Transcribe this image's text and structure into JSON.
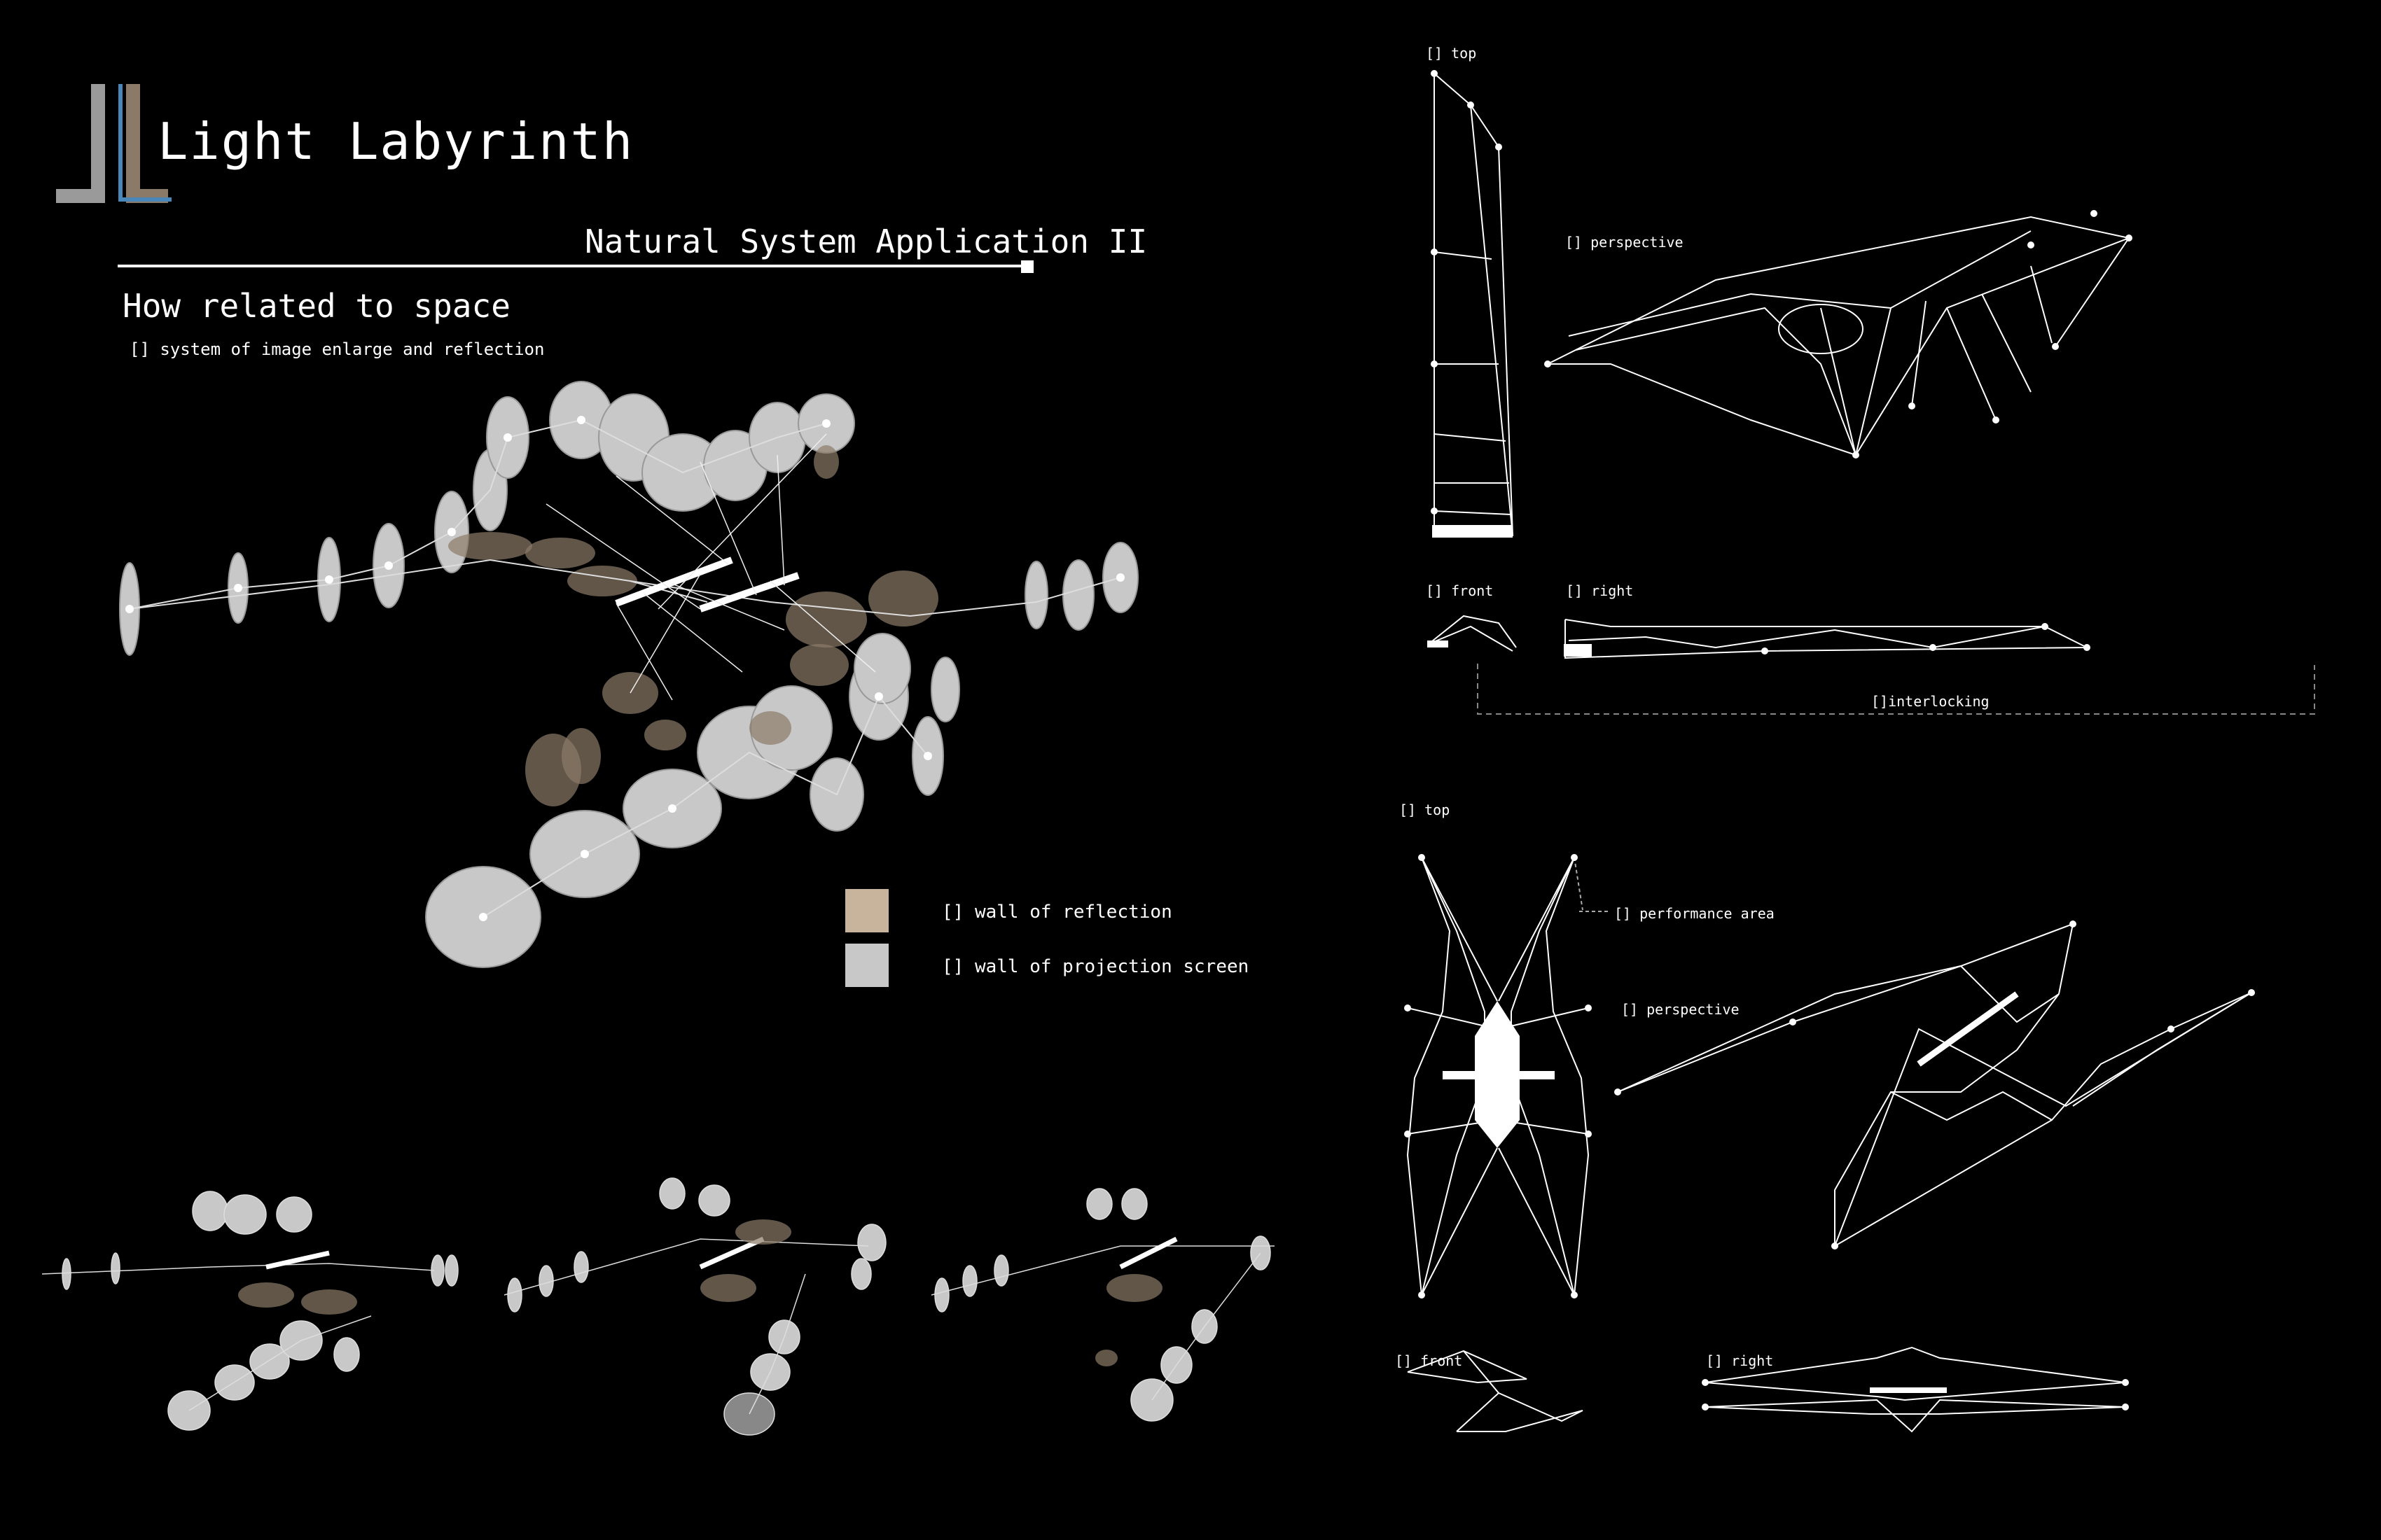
{
  "title": "Light Labyrinth",
  "subtitle": "Natural System Application II",
  "heading": "How related to space",
  "caption": "[] system of image enlarge and reflection",
  "legend": {
    "reflection": {
      "label": "[] wall of reflection",
      "color": "#c8b49c"
    },
    "projection": {
      "label": "[] wall of projection screen",
      "color": "#c8c8c8"
    }
  },
  "views_upper": {
    "top": "[] top",
    "perspective": "[] perspective",
    "front": "[] front",
    "right": "[] right",
    "interlocking": "[]interlocking"
  },
  "views_lower": {
    "top": "[] top",
    "performance": "[] performance area",
    "perspective": "[] perspective",
    "front": "[] front",
    "right": "[] right"
  },
  "colors": {
    "background": "#000000",
    "line": "#ffffff",
    "accent_blue": "#4a86b8",
    "logo_gray": "#9a9a9a",
    "logo_brown": "#8c7a68"
  }
}
